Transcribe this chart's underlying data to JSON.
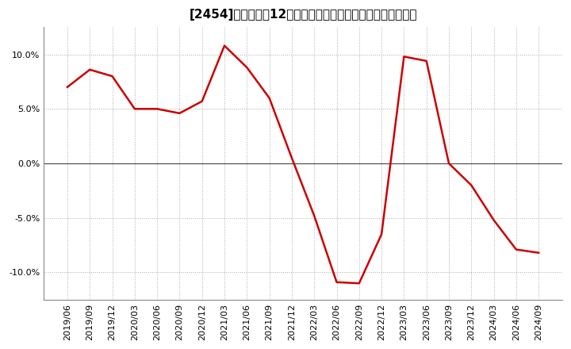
{
  "title": "[2454]　売上高の12か月移動合計の対前年同期増減率の推移",
  "x_labels": [
    "2019/06",
    "2019/09",
    "2019/12",
    "2020/03",
    "2020/06",
    "2020/09",
    "2020/12",
    "2021/03",
    "2021/06",
    "2021/09",
    "2021/12",
    "2022/03",
    "2022/06",
    "2022/09",
    "2022/12",
    "2023/03",
    "2023/06",
    "2023/09",
    "2023/12",
    "2024/03",
    "2024/06",
    "2024/09"
  ],
  "y_values": [
    0.07,
    0.086,
    0.08,
    0.05,
    0.05,
    0.046,
    0.057,
    0.108,
    0.088,
    0.06,
    0.005,
    -0.048,
    -0.109,
    -0.11,
    -0.065,
    0.098,
    0.094,
    0.0,
    -0.02,
    -0.052,
    -0.079,
    -0.082
  ],
  "line_color": "#cc0000",
  "line_width": 1.8,
  "ylim": [
    -0.125,
    0.125
  ],
  "yticks": [
    -0.1,
    -0.05,
    0.0,
    0.05,
    0.1
  ],
  "background_color": "#ffffff",
  "grid_color": "#aaaaaa",
  "zero_line_color": "#444444",
  "font_size_title": 11,
  "font_size_ticks": 8
}
